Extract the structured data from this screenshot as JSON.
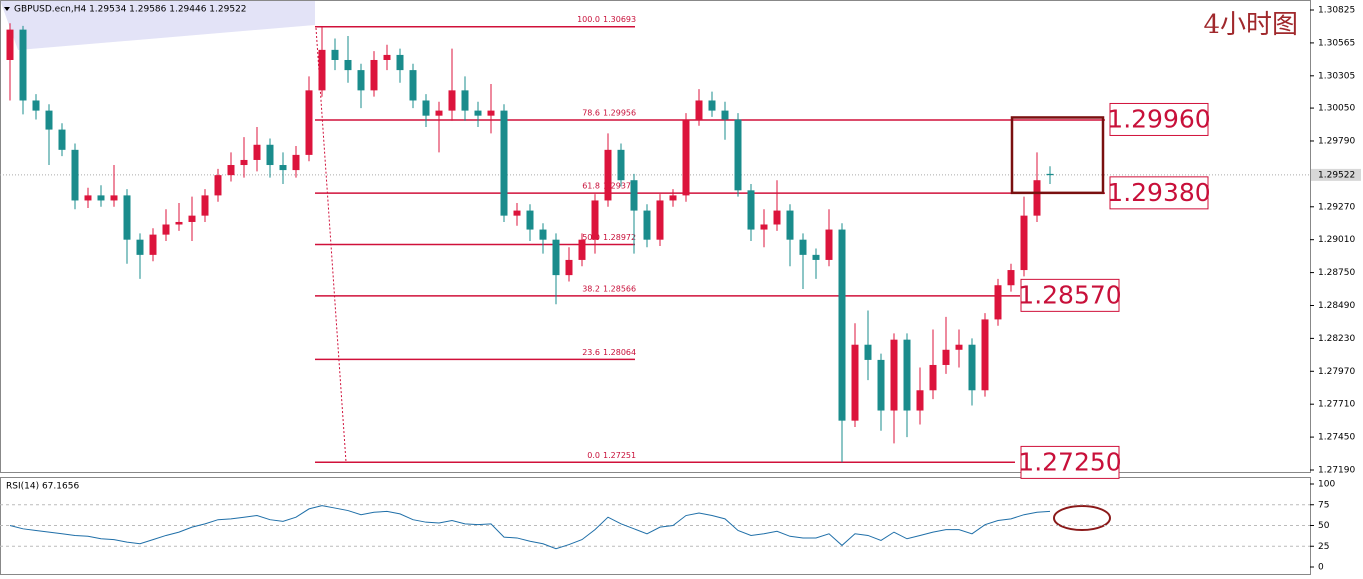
{
  "chart_data": [
    {
      "type": "candlestick",
      "title": "GBPUSD.ecn,H4  1.29534 1.29586 1.29446 1.29522",
      "caption": "4小时图",
      "up_color": "#dc143c",
      "down_color": "#1a8c8c",
      "ylim": [
        1.2719,
        1.30825
      ],
      "yticks": [
        1.30825,
        1.30565,
        1.30305,
        {
          "value": 1.3005,
          "label": "1.30050"
        },
        {
          "value": 1.2979,
          "label": "1.29790"
        },
        {
          "value": 1.2927,
          "label": "1.29270"
        },
        {
          "value": 1.2901,
          "label": "1.29010"
        },
        {
          "value": 1.2875,
          "label": "1.28750"
        },
        {
          "value": 1.2849,
          "label": "1.28490"
        },
        {
          "value": 1.2823,
          "label": "1.28230"
        },
        {
          "value": 1.2797,
          "label": "1.27970"
        },
        {
          "value": 1.2771,
          "label": "1.27710"
        },
        {
          "value": 1.2745,
          "label": "1.27450"
        },
        {
          "value": 1.2719,
          "label": "1.27190"
        }
      ],
      "current_price": 1.29522,
      "ohlc": [
        [
          1.3043,
          1.3072,
          1.3011,
          1.3067
        ],
        [
          1.3067,
          1.307,
          1.3,
          1.3011
        ],
        [
          1.3011,
          1.3016,
          1.2996,
          1.3003
        ],
        [
          1.3003,
          1.3008,
          1.296,
          1.2988
        ],
        [
          1.2988,
          1.2993,
          1.2967,
          1.2972
        ],
        [
          1.2972,
          1.2977,
          1.2925,
          1.2932
        ],
        [
          1.2932,
          1.2942,
          1.2926,
          1.2936
        ],
        [
          1.2936,
          1.2944,
          1.2927,
          1.2932
        ],
        [
          1.2932,
          1.296,
          1.2927,
          1.2936
        ],
        [
          1.2936,
          1.2941,
          1.2882,
          1.2901
        ],
        [
          1.2901,
          1.2906,
          1.287,
          1.2889
        ],
        [
          1.2889,
          1.291,
          1.2884,
          1.2905
        ],
        [
          1.2905,
          1.2925,
          1.29,
          1.2913
        ],
        [
          1.2913,
          1.293,
          1.2908,
          1.2915
        ],
        [
          1.2915,
          1.2935,
          1.29,
          1.292
        ],
        [
          1.292,
          1.2941,
          1.2915,
          1.2936
        ],
        [
          1.2936,
          1.2957,
          1.2931,
          1.2952
        ],
        [
          1.2952,
          1.297,
          1.2947,
          1.296
        ],
        [
          1.296,
          1.2982,
          1.295,
          1.2964
        ],
        [
          1.2964,
          1.299,
          1.2955,
          1.2976
        ],
        [
          1.2976,
          1.2981,
          1.295,
          1.296
        ],
        [
          1.296,
          1.297,
          1.2945,
          1.2956
        ],
        [
          1.2956,
          1.2975,
          1.295,
          1.2968
        ],
        [
          1.2968,
          1.303,
          1.2963,
          1.3019
        ],
        [
          1.3019,
          1.3069,
          1.3014,
          1.3051
        ],
        [
          1.3051,
          1.306,
          1.3035,
          1.3043
        ],
        [
          1.3043,
          1.3062,
          1.3025,
          1.3035
        ],
        [
          1.3035,
          1.304,
          1.3005,
          1.3019
        ],
        [
          1.3019,
          1.305,
          1.3014,
          1.3043
        ],
        [
          1.3043,
          1.3055,
          1.3035,
          1.3047
        ],
        [
          1.3047,
          1.3052,
          1.3025,
          1.3035
        ],
        [
          1.3035,
          1.304,
          1.3005,
          1.3011
        ],
        [
          1.3011,
          1.3016,
          1.299,
          1.2999
        ],
        [
          1.2999,
          1.301,
          1.297,
          1.3003
        ],
        [
          1.3003,
          1.3052,
          1.2995,
          1.3019
        ],
        [
          1.3019,
          1.303,
          1.2995,
          1.3003
        ],
        [
          1.3003,
          1.301,
          1.299,
          1.2999
        ],
        [
          1.2999,
          1.3024,
          1.2985,
          1.3003
        ],
        [
          1.3003,
          1.3008,
          1.2915,
          1.292
        ],
        [
          1.292,
          1.293,
          1.2912,
          1.2924
        ],
        [
          1.2924,
          1.2929,
          1.29,
          1.2909
        ],
        [
          1.2909,
          1.2914,
          1.289,
          1.2901
        ],
        [
          1.2901,
          1.2906,
          1.285,
          1.2873
        ],
        [
          1.2873,
          1.2895,
          1.2868,
          1.2885
        ],
        [
          1.2885,
          1.2906,
          1.288,
          1.2901
        ],
        [
          1.2901,
          1.2937,
          1.289,
          1.2932
        ],
        [
          1.2932,
          1.2985,
          1.2927,
          1.2972
        ],
        [
          1.2972,
          1.2977,
          1.2943,
          1.2948
        ],
        [
          1.2948,
          1.2953,
          1.289,
          1.2924
        ],
        [
          1.2924,
          1.2929,
          1.2895,
          1.2901
        ],
        [
          1.2901,
          1.2937,
          1.2896,
          1.2932
        ],
        [
          1.2932,
          1.2941,
          1.2927,
          1.2936
        ],
        [
          1.2936,
          1.3001,
          1.2931,
          1.2996
        ],
        [
          1.2996,
          1.302,
          1.2991,
          1.3011
        ],
        [
          1.3011,
          1.3018,
          1.2998,
          1.3003
        ],
        [
          1.3003,
          1.301,
          1.298,
          1.2996
        ],
        [
          1.2996,
          1.3001,
          1.2935,
          1.294
        ],
        [
          1.294,
          1.2945,
          1.29,
          1.2909
        ],
        [
          1.2909,
          1.2925,
          1.2895,
          1.2913
        ],
        [
          1.2913,
          1.2948,
          1.2908,
          1.2924
        ],
        [
          1.2924,
          1.2929,
          1.288,
          1.2901
        ],
        [
          1.2901,
          1.2906,
          1.2862,
          1.2889
        ],
        [
          1.2889,
          1.2894,
          1.287,
          1.2885
        ],
        [
          1.2885,
          1.2925,
          1.288,
          1.2909
        ],
        [
          1.2909,
          1.2914,
          1.2725,
          1.2758
        ],
        [
          1.2758,
          1.2835,
          1.2753,
          1.2818
        ],
        [
          1.2818,
          1.2845,
          1.279,
          1.2806
        ],
        [
          1.2806,
          1.2811,
          1.275,
          1.2766
        ],
        [
          1.2766,
          1.2827,
          1.274,
          1.2822
        ],
        [
          1.2822,
          1.2827,
          1.2745,
          1.2766
        ],
        [
          1.2766,
          1.28,
          1.2755,
          1.2782
        ],
        [
          1.2782,
          1.283,
          1.2775,
          1.2802
        ],
        [
          1.2802,
          1.284,
          1.2795,
          1.2814
        ],
        [
          1.2814,
          1.283,
          1.28,
          1.2818
        ],
        [
          1.2818,
          1.2823,
          1.277,
          1.2782
        ],
        [
          1.2782,
          1.2843,
          1.2777,
          1.2838
        ],
        [
          1.2838,
          1.287,
          1.2833,
          1.2865
        ],
        [
          1.2865,
          1.2882,
          1.286,
          1.2877
        ],
        [
          1.2877,
          1.2935,
          1.2872,
          1.292
        ],
        [
          1.292,
          1.297,
          1.2915,
          1.2948
        ],
        [
          1.2953,
          1.2959,
          1.2945,
          1.2952
        ]
      ],
      "fib_levels": [
        {
          "ratio": "100.0",
          "price": 1.30693
        },
        {
          "ratio": "78.6",
          "price": 1.29956
        },
        {
          "ratio": "61.8",
          "price": 1.29378
        },
        {
          "ratio": "50.0",
          "price": 1.28972
        },
        {
          "ratio": "38.2",
          "price": 1.28566
        },
        {
          "ratio": "23.6",
          "price": 1.28064
        },
        {
          "ratio": "0.0",
          "price": 1.27251
        }
      ],
      "annotations": [
        {
          "value": 1.2996,
          "label": "1.29960"
        },
        {
          "value": 1.2938,
          "label": "1.29380"
        },
        {
          "value": 1.2857,
          "label": "1.28570"
        },
        {
          "value": 1.2725,
          "label": "1.27250"
        }
      ]
    },
    {
      "type": "line",
      "title": "RSI(14) 67.1656",
      "color": "#1f6fa8",
      "ylim": [
        0,
        100
      ],
      "yticks": [
        100,
        75,
        50,
        25,
        0
      ],
      "levels": [
        75,
        50,
        25
      ],
      "values": [
        50,
        46,
        44,
        42,
        40,
        38,
        37,
        34,
        33,
        30,
        28,
        33,
        38,
        42,
        48,
        52,
        57,
        58,
        60,
        62,
        57,
        55,
        60,
        70,
        74,
        71,
        68,
        63,
        66,
        67,
        64,
        57,
        54,
        53,
        56,
        52,
        51,
        52,
        36,
        35,
        31,
        28,
        22,
        27,
        33,
        45,
        60,
        52,
        46,
        40,
        48,
        50,
        62,
        65,
        62,
        58,
        44,
        38,
        40,
        43,
        37,
        35,
        35,
        40,
        26,
        40,
        38,
        32,
        42,
        34,
        38,
        42,
        45,
        45,
        40,
        51,
        56,
        58,
        63,
        66,
        67
      ]
    }
  ]
}
